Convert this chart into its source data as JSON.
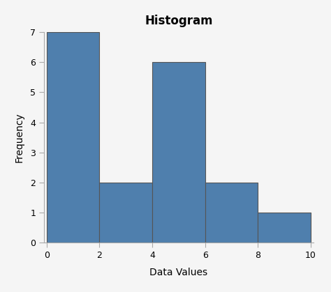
{
  "title": "Histogram",
  "xlabel": "Data Values",
  "ylabel": "Frequency",
  "bar_edges": [
    0,
    2,
    4,
    6,
    8,
    10
  ],
  "bar_heights": [
    7,
    2,
    6,
    2,
    1
  ],
  "bar_color": "#4f7fad",
  "bar_edgecolor": "#555555",
  "bar_edgewidth": 0.8,
  "xlim": [
    -0.1,
    10.1
  ],
  "ylim": [
    0,
    7
  ],
  "xticks": [
    0,
    2,
    4,
    6,
    8,
    10
  ],
  "yticks": [
    0,
    1,
    2,
    3,
    4,
    5,
    6,
    7
  ],
  "title_fontsize": 12,
  "axis_label_fontsize": 10,
  "tick_fontsize": 9,
  "background_color": "#f5f5f5",
  "spine_color": "#aaaaaa",
  "figsize": [
    4.74,
    4.19
  ],
  "dpi": 100
}
